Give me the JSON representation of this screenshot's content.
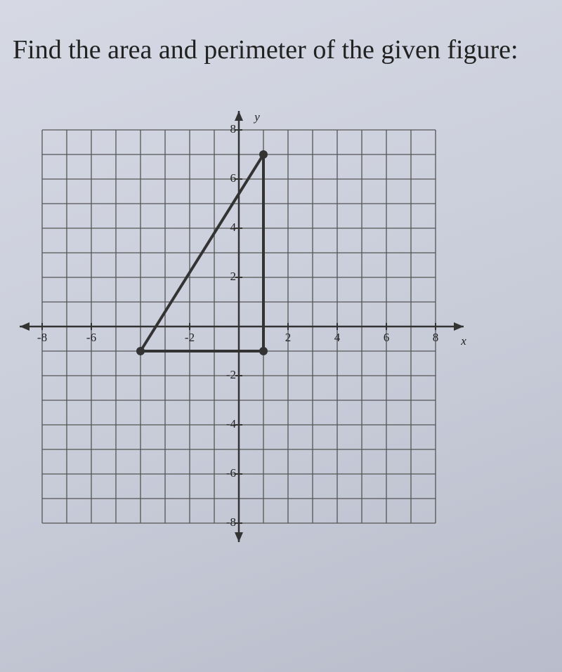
{
  "instruction": "Find the area and perimeter of the given figure:",
  "graph": {
    "x_label": "x",
    "y_label": "y",
    "xlim": [
      -8,
      8
    ],
    "ylim": [
      -8,
      8
    ],
    "xticks": [
      -8,
      -6,
      -2,
      2,
      4,
      6,
      8
    ],
    "yticks": [
      8,
      6,
      4,
      2,
      -2,
      -4,
      -6,
      -8
    ],
    "grid": true,
    "vertices": [
      {
        "x": -4,
        "y": -1
      },
      {
        "x": 1,
        "y": -1
      },
      {
        "x": 1,
        "y": 7
      }
    ]
  }
}
